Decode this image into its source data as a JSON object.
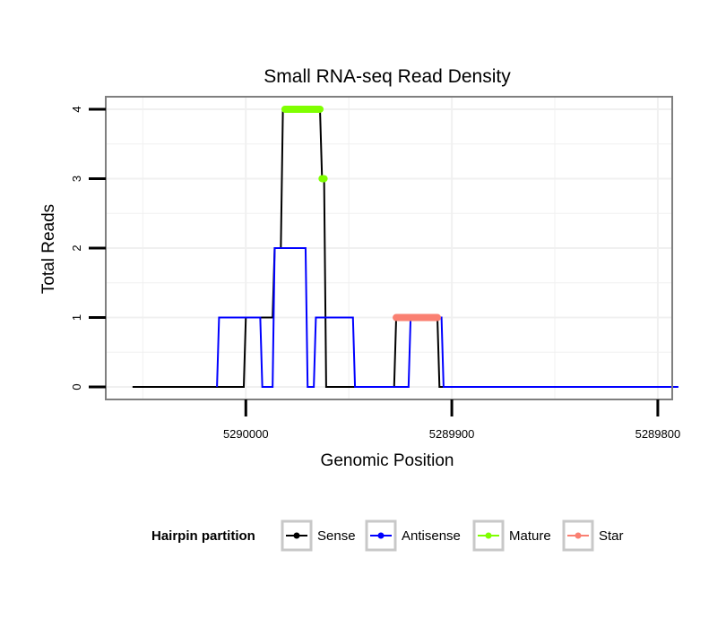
{
  "chart_data": {
    "type": "line",
    "title": "Small RNA-seq Read Density",
    "xlabel": "Genomic Position",
    "ylabel": "Total Reads",
    "x_reversed": true,
    "xlim": [
      5290068,
      5289793
    ],
    "ylim": [
      -0.18,
      4.18
    ],
    "x_ticks": [
      5290000,
      5289900,
      5289800
    ],
    "x_tick_labels": [
      "5290000",
      "5289900",
      "5289800"
    ],
    "y_ticks": [
      0,
      1,
      2,
      3,
      4
    ],
    "y_tick_labels": [
      "0",
      "1",
      "2",
      "3",
      "4"
    ],
    "grid": true,
    "legend": {
      "title": "Hairpin partition",
      "position": "bottom",
      "entries": [
        {
          "label": "Sense",
          "color": "#000000"
        },
        {
          "label": "Antisense",
          "color": "#0000ff"
        },
        {
          "label": "Mature",
          "color": "#7fff00"
        },
        {
          "label": "Star",
          "color": "#fa8072"
        }
      ]
    },
    "series": [
      {
        "name": "Sense",
        "color": "#000000",
        "kind": "line",
        "x": [
          5290055,
          5290001,
          5290000,
          5289987,
          5289986,
          5289983,
          5289982,
          5289964,
          5289963,
          5289962,
          5289961,
          5289928,
          5289927,
          5289907,
          5289906,
          5289792
        ],
        "y": [
          0,
          0,
          1,
          1,
          2,
          2,
          4,
          4,
          3,
          3,
          0,
          0,
          1,
          1,
          0,
          0
        ]
      },
      {
        "name": "Antisense",
        "color": "#0000ff",
        "kind": "line",
        "x": [
          5290014,
          5290013,
          5289993,
          5289992,
          5289987,
          5289986,
          5289971,
          5289970,
          5289967,
          5289966,
          5289948,
          5289947,
          5289921,
          5289920,
          5289905,
          5289904,
          5289790
        ],
        "y": [
          0,
          1,
          1,
          0,
          0,
          2,
          2,
          0,
          0,
          1,
          1,
          0,
          0,
          1,
          1,
          0,
          0
        ]
      },
      {
        "name": "Mature",
        "color": "#7fff00",
        "kind": "segments",
        "segments": [
          {
            "x": [
              5289981,
              5289964
            ],
            "y": [
              4,
              4
            ]
          },
          {
            "x": [
              5289963,
              5289962
            ],
            "y": [
              3,
              3
            ]
          }
        ]
      },
      {
        "name": "Star",
        "color": "#fa8072",
        "kind": "segments",
        "segments": [
          {
            "x": [
              5289927,
              5289907
            ],
            "y": [
              1,
              1
            ]
          }
        ]
      }
    ]
  }
}
